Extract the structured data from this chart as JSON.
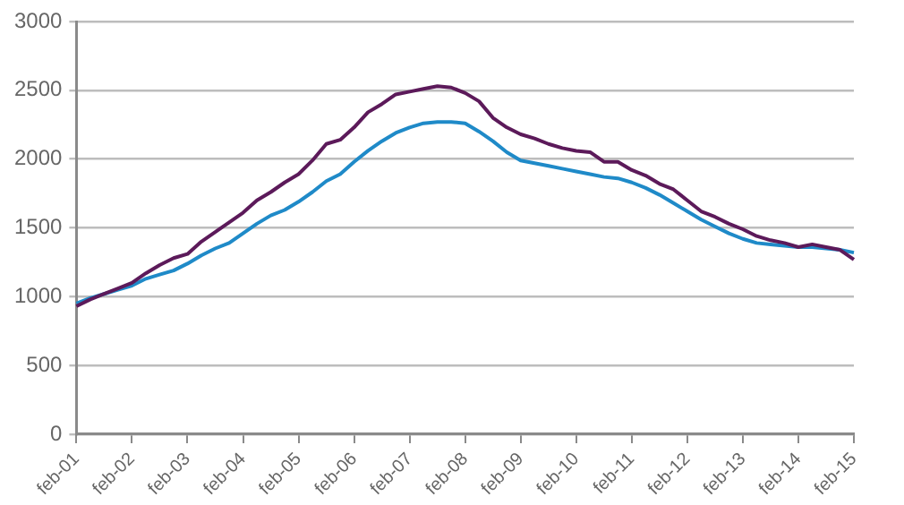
{
  "chart_data": {
    "type": "line",
    "categories": [
      "feb-01",
      null,
      null,
      null,
      "feb-02",
      null,
      null,
      null,
      "feb-03",
      null,
      null,
      null,
      "feb-04",
      null,
      null,
      null,
      "feb-05",
      null,
      null,
      null,
      "feb-06",
      null,
      null,
      null,
      "feb-07",
      null,
      null,
      null,
      "feb-08",
      null,
      null,
      null,
      "feb-09",
      null,
      null,
      null,
      "feb-10",
      null,
      null,
      null,
      "feb-11",
      null,
      null,
      null,
      "feb-12",
      null,
      null,
      null,
      "feb-13",
      null,
      null,
      null,
      "feb-14",
      null,
      null,
      null,
      "feb-15"
    ],
    "series": [
      {
        "color": "#5c1a5a",
        "values": [
          930,
          980,
          1020,
          1060,
          1100,
          1170,
          1230,
          1280,
          1310,
          1400,
          1470,
          1540,
          1610,
          1700,
          1760,
          1830,
          1890,
          1990,
          2110,
          2140,
          2230,
          2340,
          2400,
          2470,
          2490,
          2510,
          2530,
          2520,
          2480,
          2420,
          2300,
          2230,
          2180,
          2150,
          2110,
          2080,
          2060,
          2050,
          1980,
          1980,
          1920,
          1880,
          1820,
          1780,
          1700,
          1620,
          1580,
          1530,
          1490,
          1440,
          1410,
          1390,
          1360,
          1380,
          1360,
          1340,
          1270
        ]
      },
      {
        "color": "#1f8ac8",
        "values": [
          950,
          990,
          1020,
          1050,
          1080,
          1130,
          1160,
          1190,
          1240,
          1300,
          1350,
          1390,
          1460,
          1530,
          1590,
          1630,
          1690,
          1760,
          1840,
          1890,
          1980,
          2060,
          2130,
          2190,
          2230,
          2260,
          2270,
          2270,
          2260,
          2200,
          2130,
          2050,
          1990,
          1970,
          1950,
          1930,
          1910,
          1890,
          1870,
          1860,
          1830,
          1790,
          1740,
          1680,
          1620,
          1560,
          1510,
          1460,
          1420,
          1390,
          1380,
          1370,
          1360,
          1360,
          1350,
          1340,
          1320
        ]
      }
    ],
    "ylim": [
      0,
      3000
    ],
    "yticks": [
      0,
      500,
      1000,
      1500,
      2000,
      2500,
      3000
    ],
    "grid": "y",
    "legend": false,
    "marker": "none",
    "line_style": "solid"
  }
}
